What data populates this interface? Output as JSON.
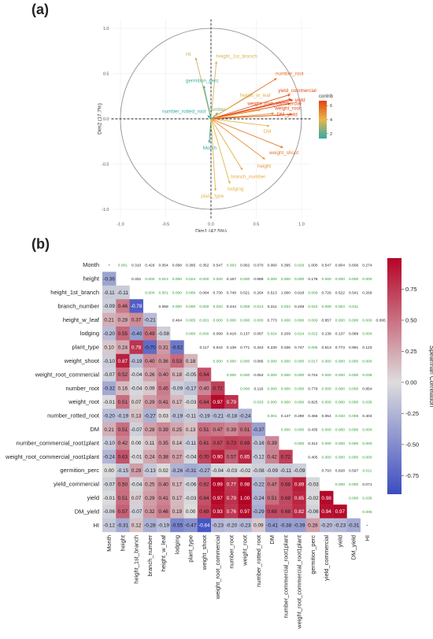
{
  "panels": {
    "a": "(a)",
    "b": "(b)"
  },
  "chart_data": [
    {
      "type": "scatter",
      "subtype": "pca-biplot",
      "xlabel": "Dim1 (42.5%)",
      "ylabel": "Dim2 (17.7%)",
      "xlim": [
        -1.1,
        1.1
      ],
      "ylim": [
        -1.1,
        1.1
      ],
      "xticks": [
        "-1.0",
        "-0.5",
        "0.0",
        "0.5",
        "1.0"
      ],
      "yticks": [
        "-1.0",
        "-0.5",
        "0.0",
        "0.5",
        "1.0"
      ],
      "legend_title": "contrib",
      "legend_ticks": [
        "6",
        "4",
        "2"
      ],
      "legend_range": [
        1.3,
        6.7
      ],
      "legend_position": "right",
      "colors": {
        "low": "#33aaa8",
        "mid": "#e8b64a",
        "high": "#e3440f"
      },
      "vectors": [
        {
          "name": "HI",
          "x": -0.17,
          "y": 0.68,
          "contrib": 3.6
        },
        {
          "name": "height_1st_branch",
          "x": 0.06,
          "y": 0.64,
          "contrib": 3.7
        },
        {
          "name": "germition_perc",
          "x": -0.08,
          "y": 0.37,
          "contrib": 1.5
        },
        {
          "name": "number_root",
          "x": 0.73,
          "y": 0.45,
          "contrib": 5.6
        },
        {
          "name": "height_w_leaf",
          "x": 0.45,
          "y": 0.27,
          "contrib": 3.8
        },
        {
          "name": "yield_commercial",
          "x": 0.88,
          "y": 0.27,
          "contrib": 6.5
        },
        {
          "name": "weight_root_commercial",
          "x": 0.89,
          "y": 0.22,
          "contrib": 6.6
        },
        {
          "name": "yield",
          "x": 0.91,
          "y": 0.21,
          "contrib": 6.7
        },
        {
          "name": "weight_root",
          "x": 0.88,
          "y": 0.17,
          "contrib": 6.6
        },
        {
          "name": "number_commercial_root1plant",
          "x": 0.55,
          "y": 0.1,
          "contrib": 4.5
        },
        {
          "name": "weight_root_commercial_root1plant",
          "x": 0.7,
          "y": 0.06,
          "contrib": 5.0
        },
        {
          "name": "DM_yield",
          "x": 0.9,
          "y": 0.05,
          "contrib": 6.4
        },
        {
          "name": "DM",
          "x": 0.65,
          "y": -0.08,
          "contrib": 4.0
        },
        {
          "name": "number_rotted_root",
          "x": -0.04,
          "y": 0.04,
          "contrib": 1.3
        },
        {
          "name": "number",
          "x": 0.08,
          "y": 0.07,
          "contrib": 2.5
        },
        {
          "name": "Month",
          "x": -0.02,
          "y": -0.27,
          "contrib": 1.4
        },
        {
          "name": "weight_shoot",
          "x": 0.8,
          "y": -0.32,
          "contrib": 5.4
        },
        {
          "name": "height",
          "x": 0.6,
          "y": -0.45,
          "contrib": 4.8
        },
        {
          "name": "branch_number",
          "x": 0.35,
          "y": -0.57,
          "contrib": 4.2
        },
        {
          "name": "lodging",
          "x": 0.21,
          "y": -0.72,
          "contrib": 3.9
        },
        {
          "name": "plant_type",
          "x": 0.05,
          "y": -0.8,
          "contrib": 3.9
        }
      ],
      "labels_shown": {
        "HI": "HI",
        "height_1st_branch": "height_1st_branch",
        "germition_perc": "germition_perc",
        "number_root": "number_root",
        "height_w_leaf": "height_w_leaf",
        "yield_commercial": "yield_commercial",
        "weight_root_commercial": "weight_root_commercial",
        "yield": "yield",
        "weight_root": "weight_root",
        "DM_yield": "DM_yield",
        "DM": "DM",
        "number_rotted_root": "number_rotted_root",
        "number": "number",
        "Month": "Month",
        "weight_shoot": "weight_shoot",
        "height": "height",
        "branch_number": "branch_number",
        "lodging": "lodging",
        "plant_type": "plant_type"
      }
    },
    {
      "type": "heatmap",
      "subtype": "correlation-matrix",
      "variables": [
        "Month",
        "height",
        "height_1st_branch",
        "branch_number",
        "height_w_leaf",
        "lodging",
        "plant_type",
        "weight_shoot",
        "weight_root_commercial",
        "number_root",
        "weight_root",
        "number_rotted_root",
        "DM",
        "number_commercial_root1plant",
        "weight_root_commercial_root1plant",
        "germition_perc",
        "yield_commercial",
        "yield",
        "DM_yield",
        "HI"
      ],
      "correlations_lower": [
        [
          "-"
        ],
        [
          "-0.36"
        ],
        [
          "-0.11",
          "-0.11"
        ],
        [
          "-0.09",
          "0.46",
          "-0.78"
        ],
        [
          "0.21",
          "0.28",
          "0.37",
          "-0.21"
        ],
        [
          "-0.20",
          "0.55",
          "-0.40",
          "0.49",
          "-0.08"
        ],
        [
          "0.10",
          "0.24",
          "0.78",
          "-0.70",
          "0.31",
          "-0.62"
        ],
        [
          "-0.10",
          "0.87",
          "-0.19",
          "0.40",
          "0.36",
          "0.53",
          "0.18"
        ],
        [
          "-0.07",
          "0.52",
          "-0.04",
          "0.26",
          "0.40",
          "0.18",
          "-0.05",
          "0.64"
        ],
        [
          "-0.32",
          "0.16",
          "-0.04",
          "0.09",
          "0.45",
          "-0.09",
          "-0.17",
          "0.40",
          "0.72"
        ],
        [
          "-0.01",
          "0.51",
          "0.07",
          "0.29",
          "0.41",
          "0.17",
          "-0.03",
          "0.64",
          "0.97",
          "0.79"
        ],
        [
          "-0.20",
          "-0.19",
          "0.13",
          "-0.27",
          "0.03",
          "-0.19",
          "-0.11",
          "-0.19",
          "-0.21",
          "-0.18",
          "-0.24"
        ],
        [
          "0.21",
          "0.51",
          "-0.07",
          "0.28",
          "0.39",
          "0.25",
          "0.13",
          "0.51",
          "0.47",
          "0.39",
          "0.51",
          "-0.37"
        ],
        [
          "-0.10",
          "0.42",
          "0.00",
          "0.11",
          "0.35",
          "0.14",
          "-0.11",
          "0.61",
          "0.67",
          "0.73",
          "0.69",
          "-0.16",
          "0.39"
        ],
        [
          "-0.24",
          "0.63",
          "-0.01",
          "0.24",
          "0.38",
          "0.27",
          "-0.04",
          "0.70",
          "0.90",
          "0.57",
          "0.85",
          "-0.12",
          "0.42",
          "0.72"
        ],
        [
          "0.00",
          "-0.15",
          "0.29",
          "-0.13",
          "0.02",
          "-0.26",
          "-0.31",
          "-0.27",
          "-0.04",
          "-0.03",
          "-0.02",
          "-0.08",
          "-0.09",
          "-0.11",
          "-0.09"
        ],
        [
          "-0.07",
          "0.50",
          "-0.04",
          "0.25",
          "0.40",
          "0.17",
          "-0.06",
          "0.62",
          "0.99",
          "0.77",
          "0.98",
          "-0.22",
          "0.47",
          "0.68",
          "0.89",
          "-0.03"
        ],
        [
          "-0.01",
          "0.51",
          "0.07",
          "0.29",
          "0.41",
          "0.17",
          "-0.03",
          "0.64",
          "0.97",
          "0.79",
          "1.00",
          "-0.24",
          "0.51",
          "0.68",
          "0.85",
          "-0.02",
          "0.98"
        ],
        [
          "-0.06",
          "0.57",
          "-0.07",
          "0.32",
          "0.46",
          "0.19",
          "0.00",
          "0.69",
          "0.93",
          "0.76",
          "0.97",
          "-0.29",
          "0.68",
          "0.68",
          "0.82",
          "-0.06",
          "0.94",
          "0.97"
        ],
        [
          "-0.12",
          "-0.31",
          "0.12",
          "-0.28",
          "-0.19",
          "-0.55",
          "-0.47",
          "-0.84",
          "-0.23",
          "-0.20",
          "-0.23",
          "0.09",
          "-0.41",
          "-0.38",
          "-0.39",
          "0.28",
          "-0.20",
          "-0.23",
          "-0.31"
        ]
      ],
      "pvalues_upper": [
        [
          "0.001",
          "0.310",
          "0.429",
          "0.054",
          "0.068",
          "0.395",
          "0.352",
          "0.547",
          "0.003",
          "0.902",
          "0.070",
          "0.060",
          "0.395",
          "0.029",
          "1.000",
          "0.547",
          "0.904",
          "0.606",
          "0.274"
        ],
        [
          "0.331",
          "0.000",
          "0.013",
          "0.000",
          "0.024",
          "0.000",
          "0.000",
          "0.157",
          "0.000",
          "0.089",
          "0.000",
          "0.000",
          "0.000",
          "0.178",
          "0.000",
          "0.000",
          "0.000",
          "0.000"
        ],
        [
          "0.000",
          "0.001",
          "0.000",
          "0.000",
          "0.084",
          "0.730",
          "0.748",
          "0.521",
          "0.264",
          "0.513",
          "1.000",
          "0.918",
          "0.009",
          "0.726",
          "0.522",
          "0.541",
          "0.269"
        ],
        [
          "0.058",
          "0.000",
          "0.000",
          "0.000",
          "0.020",
          "0.444",
          "0.008",
          "0.013",
          "0.311",
          "0.034",
          "0.249",
          "0.022",
          "0.008",
          "0.004",
          "0.011"
        ],
        [
          "0.464",
          "0.005",
          "0.001",
          "0.000",
          "0.000",
          "0.000",
          "0.000",
          "0.773",
          "0.000",
          "0.000",
          "0.000",
          "0.857",
          "0.000",
          "0.000",
          "0.000",
          "0.095"
        ],
        [
          "0.000",
          "0.000",
          "0.099",
          "0.418",
          "0.137",
          "0.087",
          "0.024",
          "0.209",
          "0.014",
          "0.022",
          "0.138",
          "0.137",
          "0.089",
          "0.000"
        ],
        [
          "0.117",
          "0.643",
          "0.139",
          "0.771",
          "0.343",
          "0.230",
          "0.336",
          "0.747",
          "0.005",
          "0.613",
          "0.773",
          "0.991",
          "0.123"
        ],
        [
          "0.000",
          "0.000",
          "0.000",
          "0.085",
          "0.000",
          "0.000",
          "0.000",
          "0.017",
          "0.000",
          "0.000",
          "0.000",
          "0.000"
        ],
        [
          "0.000",
          "0.000",
          "0.053",
          "0.000",
          "0.000",
          "0.000",
          "0.744",
          "0.000",
          "0.000",
          "0.000",
          "0.039"
        ],
        [
          "0.000",
          "0.116",
          "0.000",
          "0.000",
          "0.000",
          "0.779",
          "0.000",
          "0.000",
          "0.000",
          "0.854"
        ],
        [
          "0.033",
          "0.000",
          "0.000",
          "0.000",
          "0.825",
          "0.000",
          "0.000",
          "0.000",
          "0.035"
        ],
        [
          "0.001",
          "0.147",
          "0.290",
          "0.456",
          "0.054",
          "0.033",
          "0.008",
          "0.404"
        ],
        [
          "0.000",
          "0.000",
          "0.435",
          "0.000",
          "0.000",
          "0.000",
          "0.000"
        ],
        [
          "0.000",
          "0.312",
          "0.000",
          "0.000",
          "0.000",
          "0.000"
        ],
        [
          "0.405",
          "0.000",
          "0.000",
          "0.000",
          "0.000"
        ],
        [
          "0.793",
          "0.828",
          "0.597",
          "0.011"
        ],
        [
          "0.000",
          "0.000",
          "0.071"
        ],
        [
          "0.000",
          "0.035"
        ],
        [
          "0.005"
        ],
        [
          "-"
        ]
      ],
      "colorbar_label": "Spearman Correlation",
      "colorbar_ticks": [
        "0.75",
        "0.50",
        "0.25",
        "0.00",
        "-0.25",
        "-0.50",
        "-0.75"
      ],
      "colorbar_range": [
        -0.9,
        1.0
      ],
      "colors": {
        "neg": "#3b4cc0",
        "zero": "#dddddd",
        "pos": "#b40426",
        "pval_significant": "#2a9d2a",
        "pval_text": "#222222"
      }
    }
  ]
}
